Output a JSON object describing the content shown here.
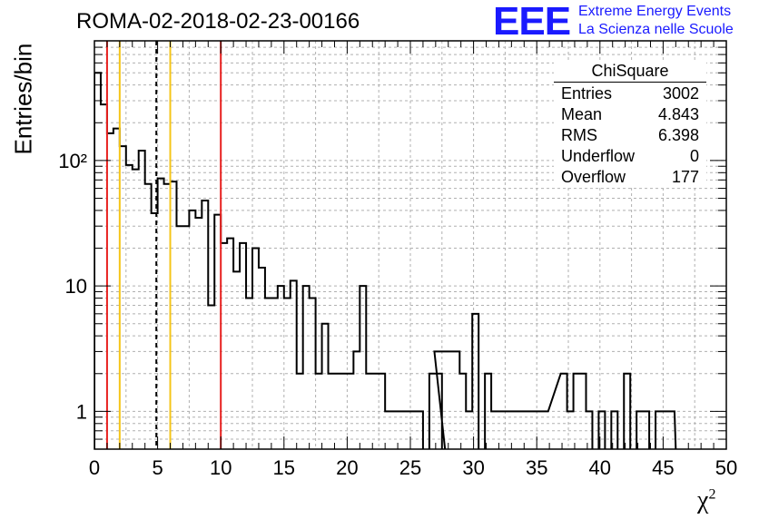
{
  "title": "ROMA-02-2018-02-23-00166",
  "logo": {
    "mark": "EEE",
    "line1": "Extreme Energy Events",
    "line2": "La Scienza nelle Scuole",
    "color": "#1a1aff"
  },
  "stats": {
    "title": "ChiSquare",
    "rows": [
      {
        "label": "Entries",
        "value": "3002"
      },
      {
        "label": "Mean",
        "value": "4.843"
      },
      {
        "label": "RMS",
        "value": "6.398"
      },
      {
        "label": "Underflow",
        "value": "0"
      },
      {
        "label": "Overflow",
        "value": "177"
      }
    ]
  },
  "chart_data": {
    "type": "bar",
    "histogram": true,
    "xlabel": "χ",
    "xlabel_sup": "2",
    "ylabel": "Entries/bin",
    "xlim": [
      0,
      50
    ],
    "ylim": [
      0.5,
      900
    ],
    "yscale": "log",
    "grid": true,
    "bin_width": 0.5,
    "x_ticks": [
      0,
      5,
      10,
      15,
      20,
      25,
      30,
      35,
      40,
      45,
      50
    ],
    "y_ticks": [
      {
        "value": 1,
        "label": "1"
      },
      {
        "value": 10,
        "label": "10"
      },
      {
        "value": 100,
        "label": "10²"
      }
    ],
    "values": [
      500,
      280,
      165,
      180,
      130,
      92,
      85,
      120,
      65,
      38,
      72,
      65,
      68,
      30,
      30,
      40,
      35,
      48,
      7,
      37,
      22,
      24,
      13,
      22,
      8,
      20,
      14,
      8,
      8,
      10,
      8,
      11,
      2,
      10,
      8,
      2,
      5,
      2,
      2,
      2,
      2,
      3,
      10,
      2,
      2,
      2,
      1,
      1,
      1,
      1,
      1,
      1,
      0,
      2,
      2,
      3,
      3,
      1,
      1,
      0,
      1,
      0,
      0,
      0,
      0,
      0,
      0,
      0,
      0,
      0,
      0,
      0,
      0,
      0,
      0,
      0,
      0,
      0,
      0,
      0,
      0,
      0,
      0,
      0,
      0,
      0,
      0,
      0,
      0,
      0,
      0,
      0,
      0,
      0,
      0,
      0,
      0,
      0,
      0,
      0
    ],
    "vlines": [
      {
        "x": 1,
        "color": "#e8201e",
        "style": "solid"
      },
      {
        "x": 2,
        "color": "#f5c518",
        "style": "solid"
      },
      {
        "x": 4.9,
        "color": "#000000",
        "style": "dashed"
      },
      {
        "x": 6,
        "color": "#f5c518",
        "style": "solid"
      },
      {
        "x": 10,
        "color": "#e8201e",
        "style": "solid"
      }
    ],
    "tail": [
      {
        "x0": 27.5,
        "x1": 27.9,
        "y": 0
      },
      {
        "x0": 26.9,
        "x1": 28.9,
        "y": 3
      },
      {
        "x0": 28.9,
        "x1": 29.4,
        "y": 2
      },
      {
        "x0": 29.4,
        "x1": 29.9,
        "y": 1
      },
      {
        "x0": 29.9,
        "x1": 30.4,
        "y": 6
      },
      {
        "x0": 30.4,
        "x1": 30.9,
        "y": 0
      },
      {
        "x0": 30.9,
        "x1": 31.4,
        "y": 2
      },
      {
        "x0": 31.4,
        "x1": 32.4,
        "y": 1
      },
      {
        "x0": 33.4,
        "x1": 35.9,
        "y": 1
      },
      {
        "x0": 36.9,
        "x1": 37.4,
        "y": 2
      },
      {
        "x0": 37.4,
        "x1": 37.9,
        "y": 1
      },
      {
        "x0": 37.9,
        "x1": 38.9,
        "y": 2
      },
      {
        "x0": 38.9,
        "x1": 39.4,
        "y": 1
      },
      {
        "x0": 39.4,
        "x1": 39.9,
        "y": 0
      },
      {
        "x0": 39.9,
        "x1": 40.4,
        "y": 1
      },
      {
        "x0": 40.4,
        "x1": 40.9,
        "y": 0
      },
      {
        "x0": 40.9,
        "x1": 41.4,
        "y": 1
      },
      {
        "x0": 41.4,
        "x1": 41.9,
        "y": 0
      },
      {
        "x0": 41.9,
        "x1": 42.4,
        "y": 2
      },
      {
        "x0": 42.4,
        "x1": 42.9,
        "y": 0
      },
      {
        "x0": 42.9,
        "x1": 43.9,
        "y": 1
      },
      {
        "x0": 43.9,
        "x1": 44.4,
        "y": 0
      },
      {
        "x0": 44.4,
        "x1": 45.9,
        "y": 1
      }
    ]
  }
}
